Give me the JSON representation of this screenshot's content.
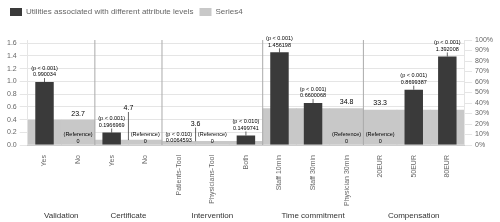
{
  "chart_data": {
    "type": "bar",
    "categories": [
      "Yes",
      "No",
      "Yes",
      "No",
      "Patients-Tool",
      "Physicians-Tool",
      "Both",
      "Staff 10min",
      "Staff 30min",
      "Physician 30min",
      "20EUR",
      "50EUR",
      "80EUR"
    ],
    "category_groups": [
      "Validation",
      "Validation",
      "Certificate",
      "Certificate",
      "Intervention",
      "Intervention",
      "Intervention",
      "Time commitment",
      "Time commitment",
      "Time commitment",
      "Compensation",
      "Compensation",
      "Compensation"
    ],
    "series": [
      {
        "name": "Utilities associated with different attribute levels",
        "color": "#3a3a3a",
        "values": [
          0.990034,
          0.0,
          0.1966969,
          0.0,
          0.0064593,
          0.0,
          0.1499741,
          1.456198,
          0.6600068,
          0.0,
          0.0,
          0.8699387,
          1.392008
        ],
        "annotations": [
          "(p < 0.001)",
          "(Reference)",
          "(p < 0.001)",
          "(Reference)",
          "(p < 0.010)",
          "(Reference)",
          "(p < 0.010)",
          "(p < 0.001)",
          "(p < 0.001)",
          "(Reference)",
          "(Reference)",
          "(p < 0.001)",
          "(p < 0.001)"
        ]
      },
      {
        "name": "Series4",
        "color": "#c8c8c8",
        "axis": "y2",
        "values": [
          23.7,
          23.7,
          4.7,
          4.7,
          3.6,
          3.6,
          3.6,
          34.8,
          34.8,
          34.8,
          33.3,
          33.3,
          33.3
        ]
      }
    ],
    "ylim": [
      0,
      1.65
    ],
    "yticks": [
      {
        "value": 0,
        "label": "0.0"
      },
      0.2,
      0.4,
      0.6,
      0.8,
      {
        "value": 1.0,
        "label": "1.0"
      },
      1.2,
      1.4,
      1.6
    ],
    "y2lim": [
      0,
      100
    ],
    "y2ticks": [
      {
        "value": 0,
        "label": "0%"
      },
      {
        "value": 10,
        "label": "10%"
      },
      {
        "value": 20,
        "label": "20%"
      },
      {
        "value": 30,
        "label": "30%"
      },
      {
        "value": 40,
        "label": "40%"
      },
      {
        "value": 50,
        "label": "50%"
      },
      {
        "value": 60,
        "label": "60%"
      },
      {
        "value": 70,
        "label": "70%"
      },
      {
        "value": 80,
        "label": "80%"
      },
      {
        "value": 90,
        "label": "90%"
      },
      {
        "value": 100,
        "label": "100%"
      }
    ],
    "grid": true,
    "legend": "upper left",
    "data_labels": true
  }
}
